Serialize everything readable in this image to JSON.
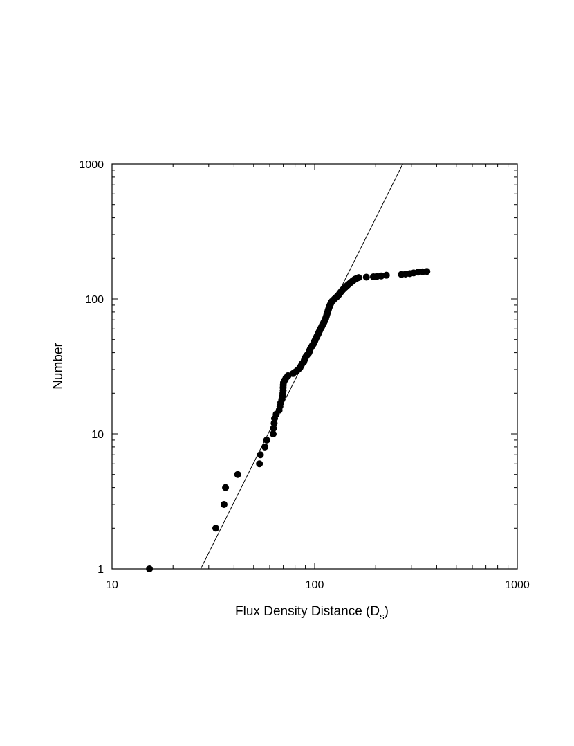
{
  "chart_data": {
    "type": "scatter",
    "title": "",
    "xlabel": "Flux Density Distance (D",
    "xlabel_sub": "s",
    "xlabel_close": ")",
    "ylabel": "Number",
    "xscale": "log",
    "yscale": "log",
    "xlim": [
      10,
      1000
    ],
    "ylim": [
      1,
      1000
    ],
    "x_ticks": [
      {
        "value": 10,
        "label": "10"
      },
      {
        "value": 100,
        "label": "100"
      },
      {
        "value": 1000,
        "label": "1000"
      }
    ],
    "y_ticks": [
      {
        "value": 1,
        "label": "1"
      },
      {
        "value": 10,
        "label": "10"
      },
      {
        "value": 100,
        "label": "100"
      },
      {
        "value": 1000,
        "label": "1000"
      }
    ],
    "grid": false,
    "legend": "none",
    "marker_color": "#000000",
    "fit_line": {
      "x": [
        27.4,
        272
      ],
      "y": [
        1,
        1000
      ]
    },
    "points": [
      [
        15.3,
        1
      ],
      [
        32.5,
        2
      ],
      [
        35.7,
        3
      ],
      [
        36.3,
        4
      ],
      [
        41.7,
        5
      ],
      [
        53.4,
        6
      ],
      [
        54,
        7
      ],
      [
        56.8,
        8
      ],
      [
        58,
        9
      ],
      [
        62.4,
        10
      ],
      [
        62.6,
        11
      ],
      [
        63.1,
        12
      ],
      [
        63.4,
        13
      ],
      [
        64.6,
        14
      ],
      [
        66.8,
        15
      ],
      [
        67.4,
        16
      ],
      [
        68,
        17
      ],
      [
        68.8,
        18
      ],
      [
        69.4,
        19
      ],
      [
        69.7,
        20
      ],
      [
        69.9,
        21
      ],
      [
        69.9,
        22
      ],
      [
        70,
        23
      ],
      [
        70.2,
        24
      ],
      [
        71.2,
        25
      ],
      [
        72.2,
        26
      ],
      [
        73.9,
        27
      ],
      [
        78.2,
        28
      ],
      [
        80.9,
        29
      ],
      [
        83,
        30
      ],
      [
        84.7,
        31
      ],
      [
        85.7,
        32
      ],
      [
        86.5,
        33
      ],
      [
        88.2,
        34
      ],
      [
        88.8,
        35
      ],
      [
        89.3,
        36
      ],
      [
        90.2,
        37
      ],
      [
        91.2,
        38
      ],
      [
        92.5,
        39
      ],
      [
        93.8,
        40
      ],
      [
        94.3,
        41
      ],
      [
        94.8,
        42
      ],
      [
        95.3,
        43
      ],
      [
        96.3,
        44
      ],
      [
        97.2,
        45
      ],
      [
        98.2,
        46
      ],
      [
        99.1,
        47
      ],
      [
        99.6,
        48
      ],
      [
        100.2,
        49
      ],
      [
        100.8,
        50
      ],
      [
        101.4,
        51
      ],
      [
        102.1,
        52
      ],
      [
        102.7,
        53
      ],
      [
        103.4,
        54
      ],
      [
        104.1,
        55
      ],
      [
        104.6,
        56
      ],
      [
        105.1,
        57
      ],
      [
        105.7,
        58
      ],
      [
        106.2,
        59
      ],
      [
        106.8,
        60
      ],
      [
        107.5,
        61
      ],
      [
        108.1,
        62
      ],
      [
        108.7,
        63
      ],
      [
        109.2,
        64
      ],
      [
        109.8,
        65
      ],
      [
        110.4,
        66
      ],
      [
        111,
        67
      ],
      [
        111.6,
        68
      ],
      [
        112.1,
        69
      ],
      [
        112.7,
        70
      ],
      [
        113.4,
        72
      ],
      [
        114.1,
        74
      ],
      [
        114.7,
        76
      ],
      [
        115.3,
        78
      ],
      [
        115.9,
        80
      ],
      [
        116.5,
        82
      ],
      [
        117.1,
        84
      ],
      [
        117.7,
        86
      ],
      [
        118.4,
        88
      ],
      [
        119.1,
        90
      ],
      [
        119.9,
        92
      ],
      [
        120.6,
        94
      ],
      [
        121.8,
        96
      ],
      [
        123.5,
        98
      ],
      [
        125.2,
        100
      ],
      [
        127,
        102
      ],
      [
        128.9,
        104
      ],
      [
        130.6,
        106
      ],
      [
        131.8,
        108
      ],
      [
        133,
        110
      ],
      [
        134.2,
        112
      ],
      [
        135.5,
        114
      ],
      [
        136.8,
        116
      ],
      [
        138.3,
        118
      ],
      [
        139.9,
        120
      ],
      [
        141.6,
        122
      ],
      [
        143.3,
        124
      ],
      [
        145,
        126
      ],
      [
        146.8,
        128
      ],
      [
        148.6,
        130
      ],
      [
        150.4,
        132
      ],
      [
        152.2,
        134
      ],
      [
        154,
        136
      ],
      [
        156,
        138
      ],
      [
        158,
        140
      ],
      [
        161,
        142
      ],
      [
        165,
        144
      ],
      [
        180,
        145
      ],
      [
        195,
        146
      ],
      [
        203,
        147
      ],
      [
        213,
        148
      ],
      [
        226,
        150
      ],
      [
        268,
        152
      ],
      [
        281,
        153
      ],
      [
        295,
        154
      ],
      [
        308,
        156
      ],
      [
        324,
        158
      ],
      [
        341,
        159
      ],
      [
        358,
        160
      ]
    ]
  }
}
